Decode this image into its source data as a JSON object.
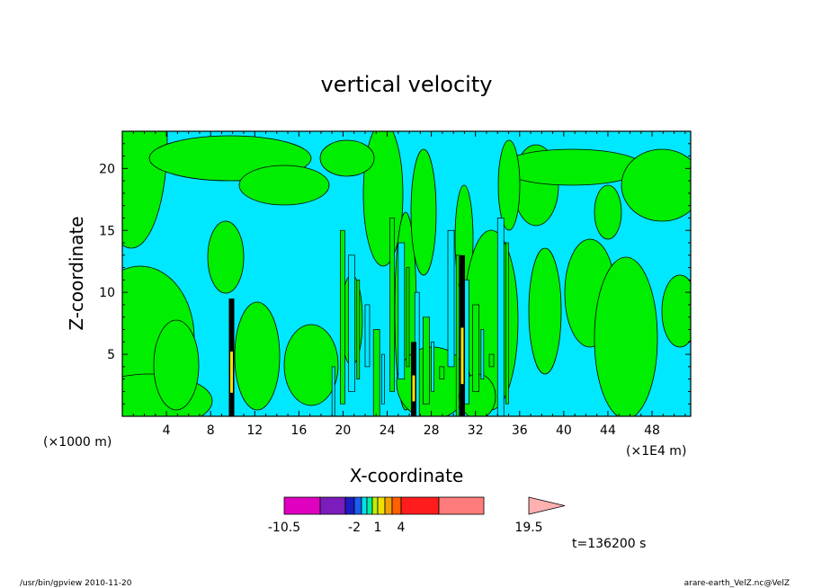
{
  "chart_data": {
    "type": "heatmap",
    "title": "vertical velocity",
    "xlabel": "X-coordinate",
    "ylabel": "Z-coordinate",
    "x_unit_left": "(×1000 m)",
    "x_unit_right": "(×1E4 m)",
    "xlim": [
      0,
      51.5
    ],
    "ylim": [
      0,
      23
    ],
    "x_ticks": [
      4,
      8,
      12,
      16,
      20,
      24,
      28,
      32,
      36,
      40,
      44,
      48
    ],
    "y_ticks": [
      5,
      10,
      15,
      20
    ],
    "time_label": "t=136200 s",
    "colorbar": {
      "colors": [
        "#e000c0",
        "#7c1cbc",
        "#1c1cc0",
        "#1c5cf0",
        "#00e0f0",
        "#00f0a0",
        "#c0f000",
        "#f0e000",
        "#f0a000",
        "#ff6000",
        "#ff1c1c",
        "#ff7c7c",
        "#ffb0b0"
      ],
      "labels": [
        "-10.5",
        "-2",
        "1",
        "4",
        "19.5"
      ]
    },
    "fills": {
      "background": "#00e8ff",
      "positive": "#00ee00",
      "strong_core": "#ffe000",
      "contour": "#000000"
    },
    "strong_columns_x": [
      9.9,
      26.4,
      30.8
    ]
  },
  "footer": {
    "left": "/usr/bin/gpview  2010-11-20",
    "right": "arare-earth_VelZ.nc@VelZ"
  }
}
